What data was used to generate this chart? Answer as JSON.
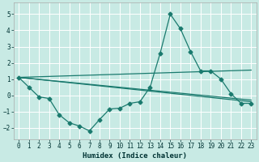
{
  "title": "",
  "xlabel": "Humidex (Indice chaleur)",
  "xlim": [
    -0.5,
    23.5
  ],
  "ylim": [
    -2.7,
    5.7
  ],
  "xticks": [
    0,
    1,
    2,
    3,
    4,
    5,
    6,
    7,
    8,
    9,
    10,
    11,
    12,
    13,
    14,
    15,
    16,
    17,
    18,
    19,
    20,
    21,
    22,
    23
  ],
  "yticks": [
    -2,
    -1,
    0,
    1,
    2,
    3,
    4,
    5
  ],
  "background_color": "#c8eae4",
  "grid_color": "#ffffff",
  "line_color": "#1a7a6e",
  "line1_x": [
    0,
    1,
    2,
    3,
    4,
    5,
    6,
    7,
    8,
    9,
    10,
    11,
    12,
    13,
    14,
    15,
    16,
    17,
    18,
    19,
    20,
    21,
    22,
    23
  ],
  "line1_y": [
    1.1,
    0.5,
    -0.1,
    -0.2,
    -1.2,
    -1.7,
    -1.9,
    -2.2,
    -1.5,
    -0.85,
    -0.8,
    -0.5,
    -0.4,
    0.5,
    2.6,
    5.0,
    4.1,
    2.7,
    1.5,
    1.5,
    1.0,
    0.1,
    -0.5,
    -0.5
  ],
  "line2_x": [
    0,
    23
  ],
  "line2_y": [
    1.1,
    -0.4
  ],
  "line3_x": [
    0,
    23
  ],
  "line3_y": [
    1.1,
    1.55
  ],
  "line4_x": [
    0,
    23
  ],
  "line4_y": [
    1.1,
    -0.3
  ],
  "marker_x": [
    0,
    1,
    2,
    3,
    4,
    5,
    6,
    7,
    8,
    9,
    10,
    11,
    12,
    13,
    14,
    15,
    16,
    17,
    18,
    19,
    20,
    21,
    22,
    23
  ],
  "marker_y": [
    1.1,
    0.5,
    -0.1,
    -0.2,
    -1.2,
    -1.7,
    -1.9,
    -2.2,
    -1.5,
    -0.85,
    -0.8,
    -0.5,
    -0.4,
    0.5,
    2.6,
    5.0,
    4.1,
    2.7,
    1.5,
    1.5,
    1.0,
    0.1,
    -0.5,
    -0.5
  ]
}
